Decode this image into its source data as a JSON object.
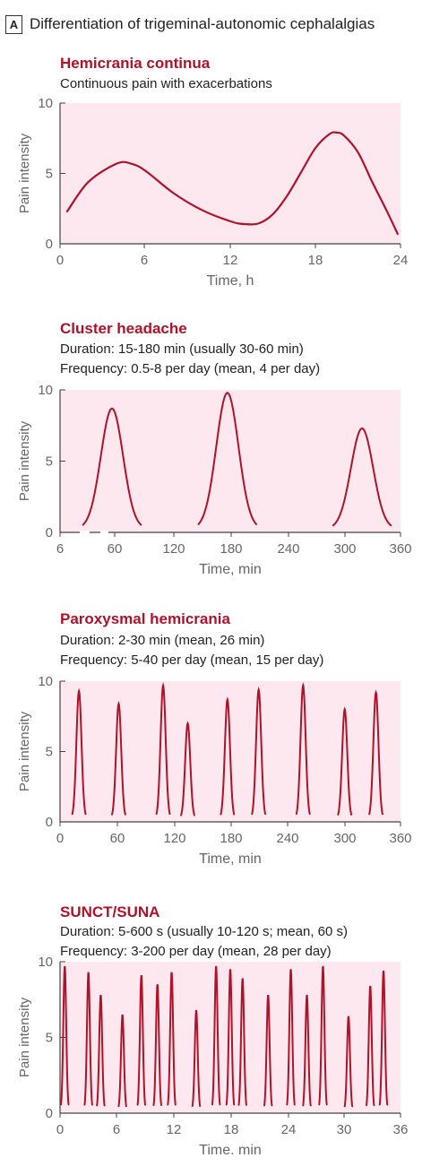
{
  "figure": {
    "panel_label": "A",
    "title": "Differentiation of trigeminal-autonomic cephalalgias"
  },
  "colors": {
    "curve": "#b0122a",
    "title": "#b0122a",
    "plot_bg": "#fce8ee",
    "axis": "#444444",
    "tick_text": "#666666"
  },
  "chart_data": [
    {
      "type": "line",
      "title": "Hemicrania continua",
      "subtitle_lines": [
        "Continuous pain with exacerbations"
      ],
      "xlabel": "Time, h",
      "ylabel": "Pain intensity",
      "xlim": [
        0,
        24
      ],
      "ylim": [
        0,
        10
      ],
      "xticks": [
        "0",
        "6",
        "12",
        "18",
        "24"
      ],
      "yticks": [
        "0",
        "5",
        "10"
      ],
      "series": [
        {
          "x": [
            0.5,
            2,
            4,
            5,
            6,
            8,
            10,
            12,
            13,
            14,
            15,
            16,
            17,
            18,
            19,
            19.5,
            20,
            21,
            22,
            23,
            23.8
          ],
          "values": [
            2.3,
            4.4,
            5.7,
            5.7,
            5.2,
            3.6,
            2.4,
            1.6,
            1.4,
            1.45,
            2.1,
            3.4,
            5.1,
            6.8,
            7.8,
            7.9,
            7.7,
            6.5,
            4.4,
            2.4,
            0.7
          ]
        }
      ]
    },
    {
      "type": "line",
      "title": "Cluster headache",
      "subtitle_lines": [
        "Duration: 15-180 min (usually 30-60 min)",
        "Frequency: 0.5-8 per day (mean, 4 per day)"
      ],
      "xlabel": "Time, min",
      "ylabel": "Pain intensity",
      "xlim": [
        6,
        360
      ],
      "ylim": [
        0,
        10
      ],
      "xticks": [
        "6",
        "60",
        "120",
        "180",
        "240",
        "300",
        "360"
      ],
      "yticks": [
        "0",
        "5",
        "10"
      ],
      "peaks": [
        {
          "start": 30,
          "center": 60,
          "end": 90,
          "height": 8.7
        },
        {
          "start": 150,
          "center": 180,
          "end": 210,
          "height": 9.8
        },
        {
          "start": 290,
          "center": 320,
          "end": 350,
          "height": 7.3
        }
      ]
    },
    {
      "type": "line",
      "title": "Paroxysmal hemicrania",
      "subtitle_lines": [
        "Duration: 2-30 min (mean, 26 min)",
        "Frequency: 5-40 per day (mean, 15 per day)"
      ],
      "xlabel": "Time, min",
      "ylabel": "Pain intensity",
      "xlim": [
        0,
        360
      ],
      "ylim": [
        0,
        10
      ],
      "xticks": [
        "0",
        "60",
        "120",
        "180",
        "240",
        "300",
        "360"
      ],
      "yticks": [
        "0",
        "5",
        "10"
      ],
      "peaks": [
        {
          "start": 13,
          "center": 20,
          "end": 27,
          "height": 9.3
        },
        {
          "start": 55,
          "center": 62,
          "end": 69,
          "height": 8.4
        },
        {
          "start": 102,
          "center": 109,
          "end": 116,
          "height": 9.7
        },
        {
          "start": 128,
          "center": 135,
          "end": 142,
          "height": 7.0
        },
        {
          "start": 170,
          "center": 177,
          "end": 184,
          "height": 8.7
        },
        {
          "start": 203,
          "center": 210,
          "end": 217,
          "height": 9.4
        },
        {
          "start": 250,
          "center": 257,
          "end": 264,
          "height": 9.7
        },
        {
          "start": 294,
          "center": 301,
          "end": 308,
          "height": 8.0
        },
        {
          "start": 327,
          "center": 334,
          "end": 341,
          "height": 9.2
        }
      ]
    },
    {
      "type": "line",
      "title": "SUNCT/SUNA",
      "subtitle_lines": [
        "Duration: 5-600 s (usually 10-120 s; mean, 60 s)",
        "Frequency: 3-200 per day (mean, 28 per day)"
      ],
      "xlabel": "Time, min",
      "ylabel": "Pain intensity",
      "xlim": [
        0,
        36
      ],
      "ylim": [
        0,
        10
      ],
      "xticks": [
        "0",
        "6",
        "12",
        "18",
        "24",
        "30",
        "36"
      ],
      "yticks": [
        "0",
        "5",
        "10"
      ],
      "peaks": [
        {
          "start": 0.1,
          "center": 0.5,
          "end": 0.9,
          "height": 9.7
        },
        {
          "start": 2.6,
          "center": 3.0,
          "end": 3.4,
          "height": 9.3
        },
        {
          "start": 3.9,
          "center": 4.3,
          "end": 4.7,
          "height": 7.8
        },
        {
          "start": 6.2,
          "center": 6.6,
          "end": 7.0,
          "height": 6.5
        },
        {
          "start": 8.2,
          "center": 8.6,
          "end": 9.0,
          "height": 9.1
        },
        {
          "start": 9.9,
          "center": 10.3,
          "end": 10.7,
          "height": 8.5
        },
        {
          "start": 11.4,
          "center": 11.8,
          "end": 12.2,
          "height": 9.3
        },
        {
          "start": 14.0,
          "center": 14.4,
          "end": 14.8,
          "height": 6.8
        },
        {
          "start": 16.1,
          "center": 16.5,
          "end": 16.9,
          "height": 9.7
        },
        {
          "start": 17.6,
          "center": 18.0,
          "end": 18.4,
          "height": 9.5
        },
        {
          "start": 18.9,
          "center": 19.3,
          "end": 19.7,
          "height": 8.9
        },
        {
          "start": 21.6,
          "center": 22.0,
          "end": 22.4,
          "height": 7.8
        },
        {
          "start": 24.0,
          "center": 24.4,
          "end": 24.8,
          "height": 9.5
        },
        {
          "start": 25.7,
          "center": 26.1,
          "end": 26.5,
          "height": 7.8
        },
        {
          "start": 27.4,
          "center": 27.8,
          "end": 28.2,
          "height": 9.7
        },
        {
          "start": 30.1,
          "center": 30.5,
          "end": 30.9,
          "height": 6.4
        },
        {
          "start": 32.4,
          "center": 32.8,
          "end": 33.2,
          "height": 8.4
        },
        {
          "start": 33.8,
          "center": 34.2,
          "end": 34.6,
          "height": 9.4
        }
      ]
    }
  ]
}
